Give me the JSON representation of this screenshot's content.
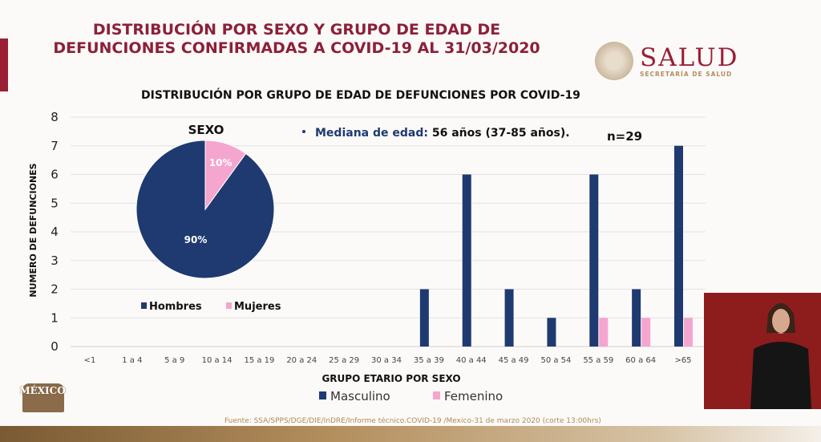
{
  "header": {
    "title": "DISTRIBUCIÓN POR SEXO Y GRUPO DE EDAD DE DEFUNCIONES CONFIRMADAS A COVID-19 AL 31/03/2020",
    "logo_text": "SALUD",
    "logo_subtext": "SECRETARÍA DE SALUD"
  },
  "footer": {
    "source": "Fuente: SSA/SPPS/DGE/DIE/InDRE/Informe técnico.COVID-19 /Mexico-31 de marzo 2020 (corte 13:00hrs)",
    "brand": "MÉXICO"
  },
  "colors": {
    "masculino": "#1f3a70",
    "femenino": "#f4a6cf",
    "title": "#8c2039"
  },
  "chart_data": [
    {
      "type": "bar",
      "title": "DISTRIBUCIÓN POR GRUPO DE EDAD DE DEFUNCIONES POR COVID-19",
      "xlabel": "GRUPO ETARIO POR SEXO",
      "ylabel": "NUMERO DE DEFUNCIONES",
      "ylim": [
        0,
        8
      ],
      "yticks": [
        0,
        1,
        2,
        3,
        4,
        5,
        6,
        7,
        8
      ],
      "grid": true,
      "legend": "bottom",
      "categories": [
        "<1",
        "1 a 4",
        "5 a 9",
        "10 a 14",
        "15 a 19",
        "20 a 24",
        "25 a 29",
        "30 a 34",
        "35 a 39",
        "40 a 44",
        "45 a 49",
        "50 a 54",
        "55 a 59",
        "60 a 64",
        ">65"
      ],
      "series": [
        {
          "name": "Masculino",
          "values": [
            0,
            0,
            0,
            0,
            0,
            0,
            0,
            0,
            2,
            6,
            2,
            1,
            6,
            2,
            7
          ]
        },
        {
          "name": "Femenino",
          "values": [
            0,
            0,
            0,
            0,
            0,
            0,
            0,
            0,
            0,
            0,
            0,
            0,
            1,
            1,
            1
          ]
        }
      ],
      "annotations": {
        "median_label": "Mediana de edad:",
        "median_value": "56 años (37-85 años).",
        "n": "n=29"
      }
    },
    {
      "type": "pie",
      "title": "SEXO",
      "slices": [
        {
          "name": "Hombres",
          "value": 90,
          "label": "90%"
        },
        {
          "name": "Mujeres",
          "value": 10,
          "label": "10%"
        }
      ],
      "legend": "bottom"
    }
  ]
}
